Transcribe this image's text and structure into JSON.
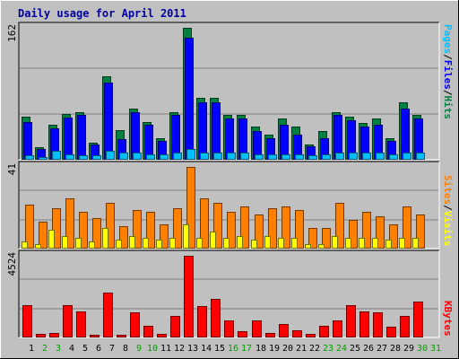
{
  "chart_data": {
    "type": "bar",
    "title": "Daily usage for April 2011",
    "colors": {
      "background": "#c0c0c0",
      "title": "#0000a0",
      "pages": "#00c0ff",
      "files": "#0000ff",
      "hits": "#008040",
      "sites": "#ff8000",
      "visits": "#ffff00",
      "kbytes": "#ff0000",
      "weekday_label": "#000000",
      "weekend_label": "#00a000"
    },
    "categories": [
      "1",
      "2",
      "3",
      "4",
      "5",
      "6",
      "7",
      "8",
      "9",
      "10",
      "11",
      "12",
      "13",
      "14",
      "15",
      "16",
      "17",
      "18",
      "19",
      "20",
      "21",
      "22",
      "23",
      "24",
      "25",
      "26",
      "27",
      "28",
      "29",
      "30",
      "31"
    ],
    "weekend_days": [
      "2",
      "3",
      "9",
      "10",
      "16",
      "17",
      "23",
      "24",
      "30",
      "31"
    ],
    "panels": [
      {
        "id": "hits",
        "ymax_label": "162",
        "ylim": [
          0,
          162
        ],
        "legend": [
          {
            "text": "Pages",
            "color": "#00c0ff"
          },
          {
            "text": "/",
            "color": "#000000"
          },
          {
            "text": "Files",
            "color": "#0000ff"
          },
          {
            "text": "/",
            "color": "#000000"
          },
          {
            "text": "Hits",
            "color": "#008040"
          }
        ],
        "series": [
          {
            "name": "Hits",
            "color": "#008040",
            "values": [
              52,
              14,
              42,
              56,
              58,
              20,
              102,
              36,
              62,
              46,
              26,
              58,
              162,
              76,
              76,
              54,
              54,
              40,
              30,
              50,
              40,
              18,
              34,
              58,
              52,
              44,
              50,
              26,
              70,
              54,
              0
            ]
          },
          {
            "name": "Files",
            "color": "#0000ff",
            "values": [
              46,
              12,
              38,
              51,
              54,
              18,
              94,
              24,
              58,
              42,
              22,
              54,
              150,
              70,
              70,
              50,
              50,
              34,
              26,
              42,
              30,
              16,
              26,
              54,
              48,
              40,
              42,
              22,
              62,
              50,
              0
            ]
          },
          {
            "name": "Pages",
            "color": "#00c0ff",
            "values": [
              4,
              2,
              10,
              6,
              4,
              4,
              10,
              8,
              8,
              6,
              6,
              8,
              12,
              8,
              8,
              8,
              8,
              6,
              6,
              6,
              6,
              4,
              6,
              8,
              8,
              8,
              8,
              6,
              8,
              8,
              0
            ]
          }
        ]
      },
      {
        "id": "visits",
        "ymax_label": "41",
        "ylim": [
          0,
          41
        ],
        "legend": [
          {
            "text": "Sites",
            "color": "#ff8000"
          },
          {
            "text": "/",
            "color": "#000000"
          },
          {
            "text": "Visits",
            "color": "#ffff00"
          }
        ],
        "series": [
          {
            "name": "Sites",
            "color": "#ff8000",
            "values": [
              22,
              13,
              20,
              25,
              18,
              15,
              23,
              11,
              19,
              18,
              12,
              20,
              41,
              25,
              23,
              18,
              21,
              17,
              20,
              21,
              19,
              10,
              10,
              23,
              14,
              18,
              16,
              12,
              21,
              17,
              0
            ]
          },
          {
            "name": "Visits",
            "color": "#ffff00",
            "values": [
              3,
              2,
              9,
              6,
              5,
              3,
              10,
              4,
              6,
              5,
              4,
              5,
              12,
              5,
              8,
              5,
              6,
              4,
              6,
              5,
              5,
              2,
              2,
              6,
              5,
              5,
              5,
              4,
              5,
              5,
              0
            ]
          }
        ]
      },
      {
        "id": "kbytes",
        "ymax_label": "4524",
        "ylim": [
          0,
          4524
        ],
        "legend": [
          {
            "text": "KBytes",
            "color": "#ff0000"
          }
        ],
        "series": [
          {
            "name": "KBytes",
            "color": "#ff0000",
            "values": [
              1750,
              150,
              220,
              1750,
              1420,
              100,
              2460,
              100,
              1360,
              590,
              160,
              1140,
              4524,
              1720,
              2100,
              900,
              310,
              890,
              190,
              710,
              360,
              140,
              600,
              910,
              1750,
              1420,
              1360,
              530,
              1160,
              1950,
              0
            ]
          }
        ]
      }
    ]
  }
}
